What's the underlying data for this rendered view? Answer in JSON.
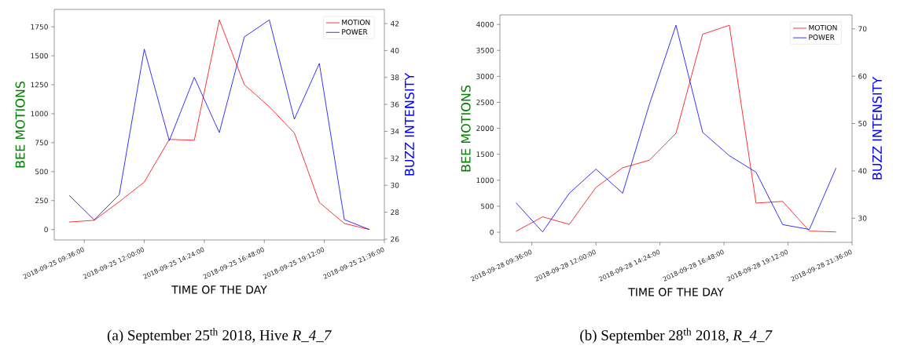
{
  "chart_data": [
    {
      "type": "line",
      "xlabel": "TIME OF THE DAY",
      "ylabel": "BEE MOTIONS",
      "y2label": "BUZZ INTENSITY",
      "legend": "top right",
      "x": [
        "2018-09-25T09:00",
        "2018-09-25T10:00",
        "2018-09-25T11:00",
        "2018-09-25T12:00",
        "2018-09-25T13:00",
        "2018-09-25T14:00",
        "2018-09-25T15:00",
        "2018-09-25T16:00",
        "2018-09-25T17:00",
        "2018-09-25T18:00",
        "2018-09-25T19:00",
        "2018-09-25T20:00",
        "2018-09-25T21:00"
      ],
      "series": [
        {
          "name": "MOTION",
          "color": "#ff0000",
          "values": [
            65,
            80,
            240,
            410,
            778,
            771,
            1810,
            1251,
            1060,
            834,
            234,
            53,
            0
          ]
        },
        {
          "name": "POWER",
          "color": "#0000ff",
          "axis": "y2",
          "values": [
            29.25,
            27.43,
            29.31,
            40.1,
            33.31,
            38.01,
            33.91,
            41.01,
            42.27,
            34.9,
            39.04,
            27.45,
            26.72
          ]
        }
      ],
      "xlim": [
        "2018-09-25T08:24",
        "2018-09-25T21:36"
      ],
      "xticks": [
        {
          "value": "2018-09-25T09:36",
          "label": "2018-09-25 09:36:00"
        },
        {
          "value": "2018-09-25T12:00",
          "label": "2018-09-25 12:00:00"
        },
        {
          "value": "2018-09-25T14:24",
          "label": "2018-09-25 14:24:00"
        },
        {
          "value": "2018-09-25T16:48",
          "label": "2018-09-25 16:48:00"
        },
        {
          "value": "2018-09-25T19:12",
          "label": "2018-09-25 19:12:00"
        },
        {
          "value": "2018-09-25T21:36",
          "label": "2018-09-25 21:36:00"
        }
      ],
      "ylim": [
        -90,
        1900
      ],
      "yticks": [
        0,
        250,
        500,
        750,
        1000,
        1250,
        1500,
        1750
      ],
      "y2lim": [
        25.94,
        43.05
      ],
      "y2ticks": [
        26,
        28,
        30,
        32,
        34,
        36,
        38,
        40,
        42
      ],
      "annotations": [
        "(a) September 25$^{th}$ 2018, Hive *R_4_7*"
      ]
    },
    {
      "type": "line",
      "xlabel": "TIME OF THE DAY",
      "ylabel": "BEE MOTIONS",
      "y2label": "BUZZ INTENSITY",
      "legend": "top right",
      "x": [
        "2018-09-28T09:00",
        "2018-09-28T10:00",
        "2018-09-28T11:00",
        "2018-09-28T12:00",
        "2018-09-28T13:00",
        "2018-09-28T14:00",
        "2018-09-28T15:00",
        "2018-09-28T16:00",
        "2018-09-28T17:00",
        "2018-09-28T18:00",
        "2018-09-28T19:00",
        "2018-09-28T20:00",
        "2018-09-28T21:00"
      ],
      "series": [
        {
          "name": "MOTION",
          "color": "#ff0000",
          "values": [
            16,
            296,
            151,
            862,
            1240,
            1385,
            1903,
            3811,
            3984,
            561,
            593,
            22,
            5
          ]
        },
        {
          "name": "POWER",
          "color": "#0000ff",
          "axis": "y2",
          "values": [
            33.26,
            27.1,
            35.27,
            40.37,
            35.27,
            54.0,
            70.77,
            48.13,
            43.21,
            39.72,
            28.64,
            27.63,
            40.61
          ]
        }
      ],
      "xlim": [
        "2018-09-28T08:24",
        "2018-09-28T21:36"
      ],
      "xticks": [
        {
          "value": "2018-09-28T09:36",
          "label": "2018-09-28 09:36:00"
        },
        {
          "value": "2018-09-28T12:00",
          "label": "2018-09-28 12:00:00"
        },
        {
          "value": "2018-09-28T14:24",
          "label": "2018-09-28 14:24:00"
        },
        {
          "value": "2018-09-28T16:48",
          "label": "2018-09-28 16:48:00"
        },
        {
          "value": "2018-09-28T19:12",
          "label": "2018-09-28 19:12:00"
        },
        {
          "value": "2018-09-28T21:36",
          "label": "2018-09-28 21:36:00"
        }
      ],
      "ylim": [
        -195,
        4183
      ],
      "yticks": [
        0,
        500,
        1000,
        1500,
        2000,
        2500,
        3000,
        3500,
        4000
      ],
      "y2lim": [
        24.9,
        72.95
      ],
      "y2ticks": [
        30,
        40,
        50,
        60,
        70
      ],
      "annotations": [
        "(b) September 28$^{th}$ 2018, *R_4_7*"
      ]
    }
  ]
}
